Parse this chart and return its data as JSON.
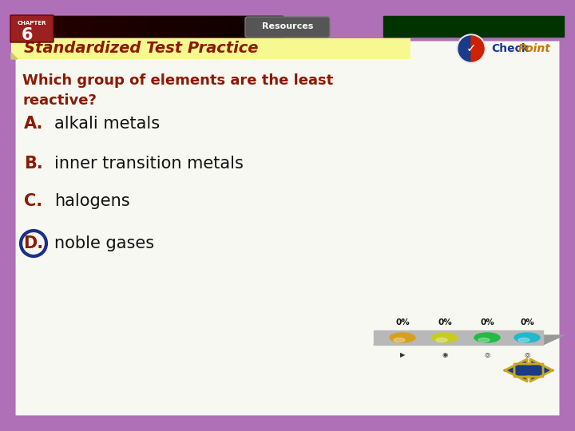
{
  "title_bar_text": "Standardized Test Practice",
  "resources_text": "Resources",
  "question_text": "Which group of elements are the least\nreactive?",
  "options": [
    {
      "letter": "A.",
      "text": "alkali metals",
      "highlighted": false
    },
    {
      "letter": "B.",
      "text": "inner transition metals",
      "highlighted": false
    },
    {
      "letter": "C.",
      "text": "halogens",
      "highlighted": false
    },
    {
      "letter": "D.",
      "text": "noble gases",
      "highlighted": true
    }
  ],
  "bg_color": "#b070b8",
  "content_bg": "#f8f8f2",
  "header_left_color": "#3a0000",
  "header_right_color": "#003300",
  "chapter_bg": "#9b2020",
  "title_bg_color": "#f8f890",
  "title_text_color": "#8b1a00",
  "question_text_color": "#8b1a00",
  "option_letter_color": "#8b1a00",
  "option_text_color": "#111111",
  "answer_circle_color": "#1a2f8a",
  "percent_labels": [
    "0%",
    "0%",
    "0%",
    "0%"
  ],
  "bar_colors": [
    "#d4a020",
    "#c8cc20",
    "#22bb44",
    "#22b8cc"
  ],
  "nav_left_color": "#1a3a8a",
  "nav_right_color": "#c8a820",
  "nav_border_color": "#c8a820"
}
